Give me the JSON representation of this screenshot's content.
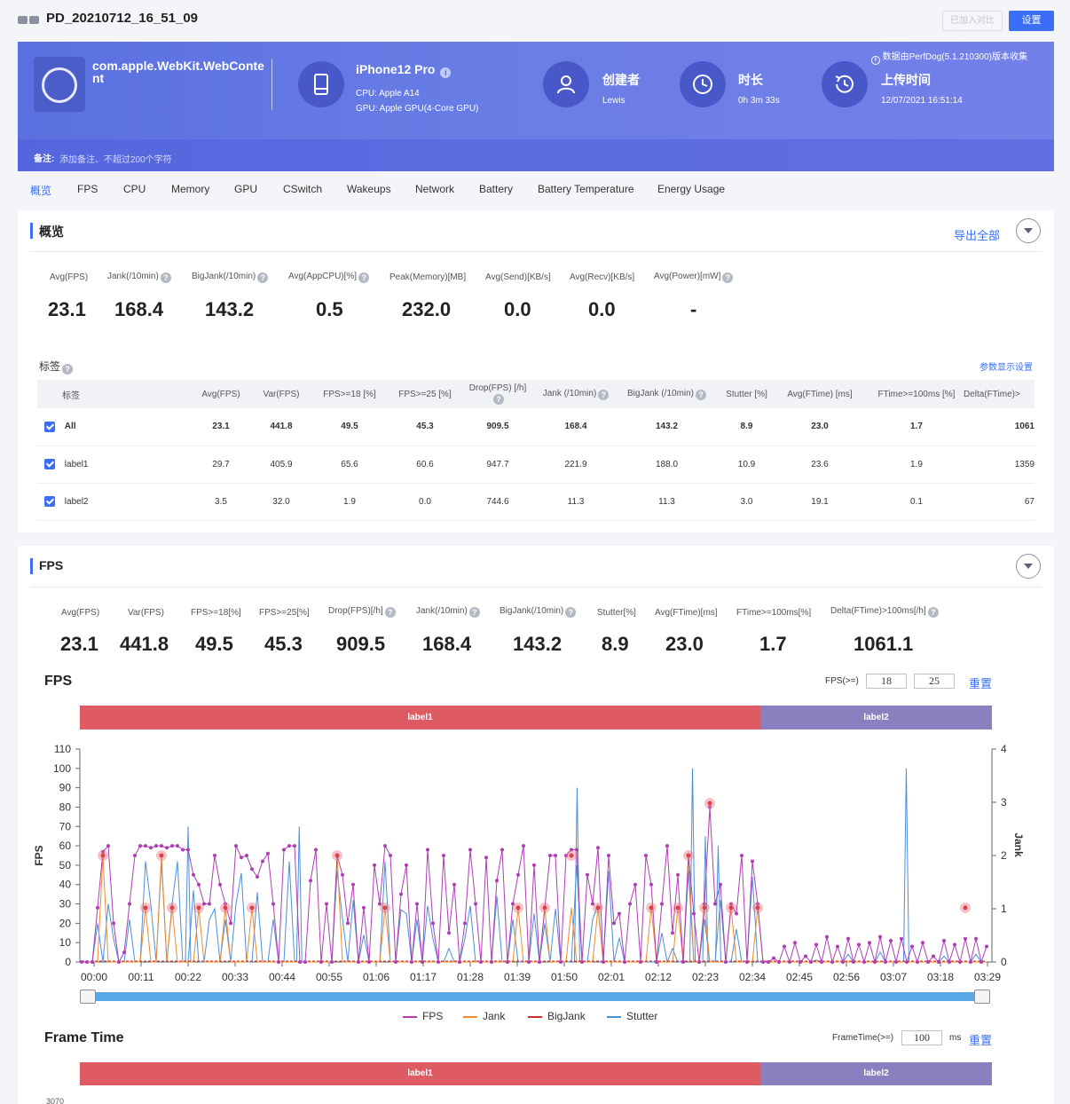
{
  "header": {
    "title": "PD_20210712_16_51_09",
    "compare_label": "已加入对比",
    "settings_label": "设置"
  },
  "banner": {
    "app_name": "com.apple.WebKit.WebContent",
    "device_name": "iPhone12 Pro",
    "cpu": "CPU: Apple A14",
    "gpu": "GPU: Apple GPU(4-Core GPU)",
    "creator_title": "创建者",
    "creator": "Lewis",
    "duration_title": "时长",
    "duration": "0h 3m 33s",
    "upload_title": "上传时间",
    "upload_time": "12/07/2021 16:51:14",
    "note": "数据由PerfDog(5.1.210300)版本收集",
    "remark_label": "备注:",
    "remark_placeholder": "添加备注、不超过200个字符"
  },
  "tabs": [
    "概览",
    "FPS",
    "CPU",
    "Memory",
    "GPU",
    "CSwitch",
    "Wakeups",
    "Network",
    "Battery",
    "Battery Temperature",
    "Energy Usage"
  ],
  "overview": {
    "title": "概览",
    "export_label": "导出全部",
    "metrics": [
      {
        "label": "Avg(FPS)",
        "value": "23.1",
        "help": false
      },
      {
        "label": "Jank(/10min)",
        "value": "168.4",
        "help": true
      },
      {
        "label": "BigJank(/10min)",
        "value": "143.2",
        "help": true
      },
      {
        "label": "Avg(AppCPU)[%]",
        "value": "0.5",
        "help": true
      },
      {
        "label": "Peak(Memory)[MB]",
        "value": "232.0",
        "help": false
      },
      {
        "label": "Avg(Send)[KB/s]",
        "value": "0.0",
        "help": false
      },
      {
        "label": "Avg(Recv)[KB/s]",
        "value": "0.0",
        "help": false
      },
      {
        "label": "Avg(Power)[mW]",
        "value": "-",
        "help": true
      }
    ],
    "labels_title": "标签",
    "param_settings": "参数显示设置",
    "table": {
      "headers": [
        "标签",
        "Avg(FPS)",
        "Var(FPS)",
        "FPS>=18 [%]",
        "FPS>=25 [%]",
        "Drop(FPS) [/h]",
        "Jank (/10min)",
        "BigJank (/10min)",
        "Stutter [%]",
        "Avg(FTime) [ms]",
        "FTime>=100ms [%]",
        "Delta(FTime)>"
      ],
      "rows": [
        {
          "name": "All",
          "cells": [
            "23.1",
            "441.8",
            "49.5",
            "45.3",
            "909.5",
            "168.4",
            "143.2",
            "8.9",
            "23.0",
            "1.7",
            "1061"
          ]
        },
        {
          "name": "label1",
          "cells": [
            "29.7",
            "405.9",
            "65.6",
            "60.6",
            "947.7",
            "221.9",
            "188.0",
            "10.9",
            "23.6",
            "1.9",
            "1359"
          ]
        },
        {
          "name": "label2",
          "cells": [
            "3.5",
            "32.0",
            "1.9",
            "0.0",
            "744.6",
            "11.3",
            "11.3",
            "3.0",
            "19.1",
            "0.1",
            "67"
          ]
        }
      ]
    }
  },
  "fps_section": {
    "title": "FPS",
    "metrics": [
      {
        "label": "Avg(FPS)",
        "value": "23.1",
        "help": false
      },
      {
        "label": "Var(FPS)",
        "value": "441.8",
        "help": false
      },
      {
        "label": "FPS>=18[%]",
        "value": "49.5",
        "help": false
      },
      {
        "label": "FPS>=25[%]",
        "value": "45.3",
        "help": false
      },
      {
        "label": "Drop(FPS)[/h]",
        "value": "909.5",
        "help": true
      },
      {
        "label": "Jank(/10min)",
        "value": "168.4",
        "help": true
      },
      {
        "label": "BigJank(/10min)",
        "value": "143.2",
        "help": true
      },
      {
        "label": "Stutter[%]",
        "value": "8.9",
        "help": false
      },
      {
        "label": "Avg(FTime)[ms]",
        "value": "23.0",
        "help": false
      },
      {
        "label": "FTime>=100ms[%]",
        "value": "1.7",
        "help": false
      },
      {
        "label": "Delta(FTime)>100ms[/h]",
        "value": "1061.1",
        "help": true
      }
    ],
    "chart_title": "FPS",
    "threshold_label": "FPS(>=)",
    "threshold1": "18",
    "threshold2": "25",
    "reset_label": "重置",
    "band1": "label1",
    "band2": "label2",
    "frametime_title": "Frame Time",
    "frametime_label": "FrameTime(>=)",
    "frametime_value": "100",
    "frametime_unit": "ms",
    "frametime_reset": "重置",
    "frametime_tick": "3070"
  },
  "chart_data": {
    "type": "line",
    "title": "FPS",
    "ylabel": "FPS",
    "y2label": "Jank",
    "ylim": [
      0,
      110
    ],
    "y2lim": [
      0,
      4
    ],
    "yticks": [
      "110",
      "100",
      "90",
      "80",
      "70",
      "60",
      "50",
      "40",
      "30",
      "20",
      "10",
      "0"
    ],
    "y2ticks": [
      "4",
      "3",
      "2",
      "1",
      "0"
    ],
    "xticks": [
      "00:00",
      "00:11",
      "00:22",
      "00:33",
      "00:44",
      "00:55",
      "01:06",
      "01:17",
      "01:28",
      "01:39",
      "01:50",
      "02:01",
      "02:12",
      "02:23",
      "02:34",
      "02:45",
      "02:56",
      "03:07",
      "03:18",
      "03:29"
    ],
    "legend": [
      "FPS",
      "Jank",
      "BigJank",
      "Stutter"
    ],
    "colors": {
      "FPS": "#b03db5",
      "Jank": "#f08a2c",
      "BigJank": "#c9302c",
      "Stutter": "#4a8fdc"
    },
    "x_range_seconds": [
      0,
      213
    ],
    "fps_series": [
      0,
      0,
      0,
      28,
      57,
      60,
      20,
      0,
      5,
      30,
      55,
      60,
      60,
      59,
      60,
      60,
      59,
      60,
      60,
      58,
      58,
      45,
      40,
      30,
      30,
      55,
      40,
      30,
      20,
      60,
      54,
      55,
      48,
      44,
      52,
      56,
      30,
      0,
      58,
      60,
      60,
      0,
      0,
      42,
      58,
      0,
      30,
      0,
      55,
      45,
      20,
      40,
      0,
      28,
      0,
      50,
      30,
      60,
      55,
      0,
      35,
      50,
      0,
      30,
      0,
      58,
      20,
      0,
      55,
      15,
      40,
      0,
      20,
      58,
      30,
      0,
      54,
      0,
      42,
      58,
      0,
      30,
      45,
      60,
      0,
      50,
      0,
      28,
      55,
      55,
      0,
      55,
      58,
      58,
      0,
      45,
      30,
      59,
      0,
      55,
      20,
      25,
      0,
      30,
      40,
      0,
      55,
      40,
      0,
      30,
      60,
      15,
      45,
      0,
      55,
      25,
      0,
      30,
      80,
      30,
      40,
      0,
      30,
      25,
      55,
      0,
      52,
      30,
      0,
      0,
      2,
      0,
      8,
      0,
      10,
      0,
      3,
      0,
      9,
      0,
      13,
      0,
      8,
      0,
      12,
      0,
      9,
      0,
      10,
      0,
      13,
      0,
      11,
      0,
      12,
      0,
      8,
      0,
      10,
      0,
      3,
      0,
      11,
      0,
      9,
      0,
      12,
      0,
      12,
      0,
      8
    ],
    "stutter_spikes_seconds": [
      22,
      48,
      113,
      140,
      143,
      146,
      190
    ],
    "jank_markers_fps_level": [
      28,
      55,
      82
    ]
  }
}
